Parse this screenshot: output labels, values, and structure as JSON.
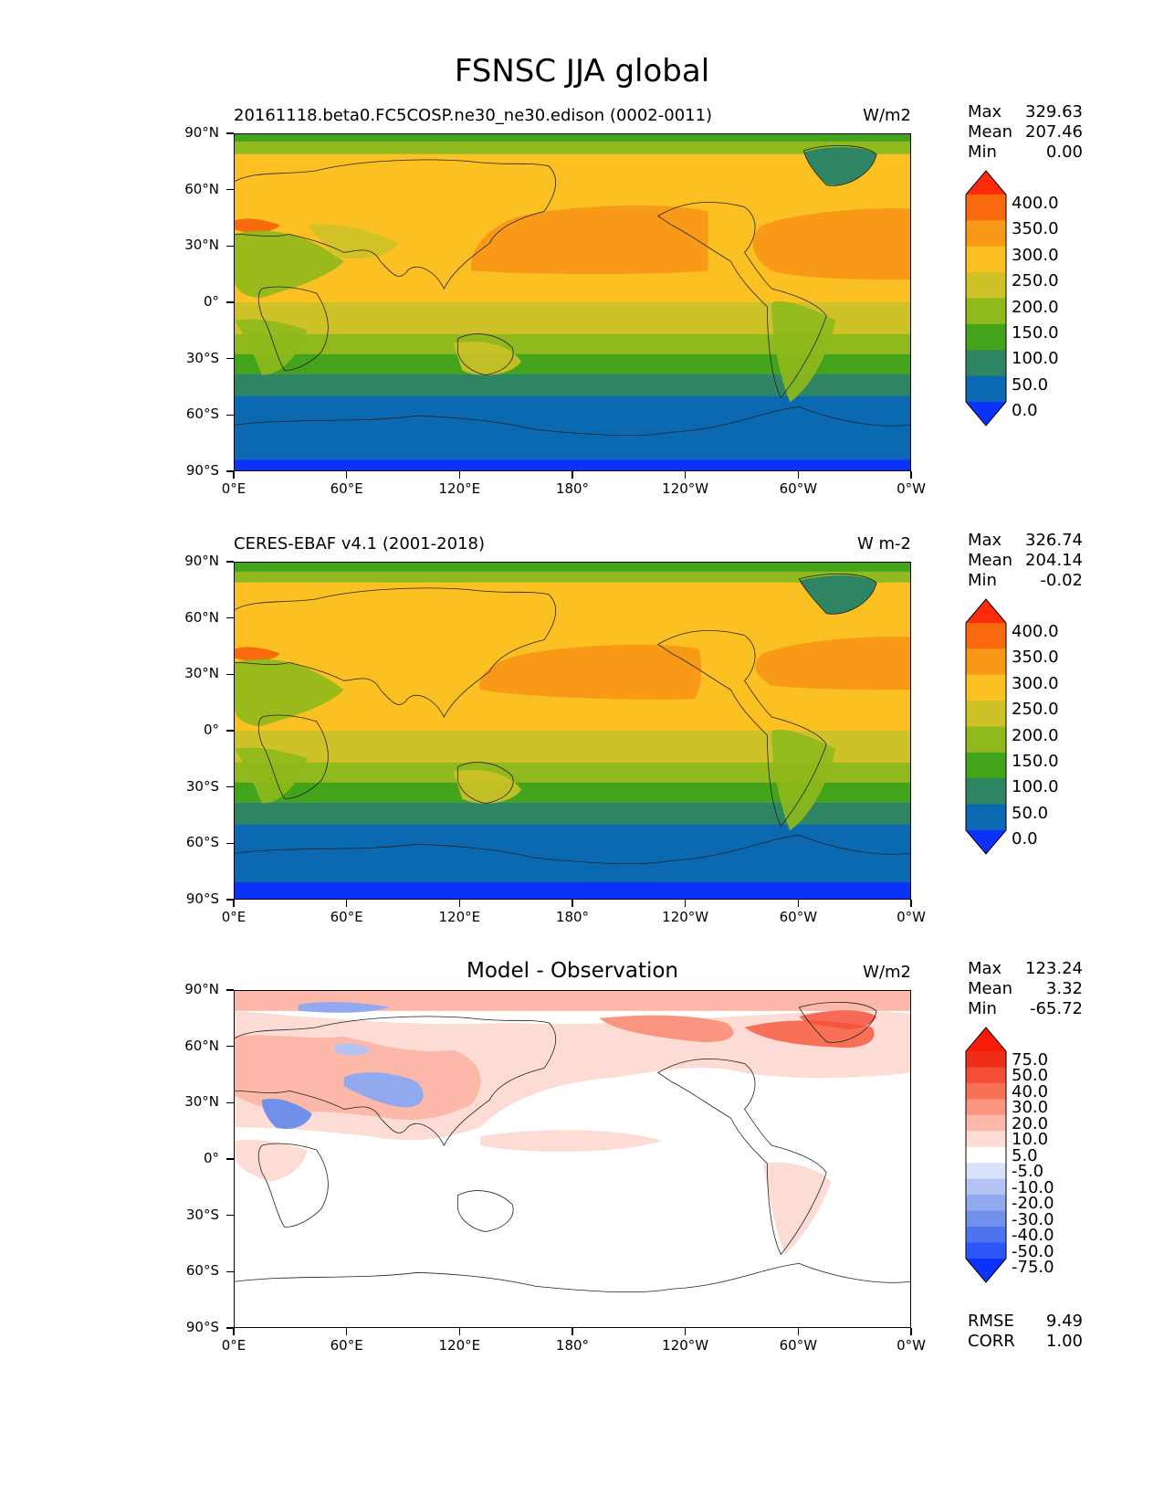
{
  "figure_title": "FSNSC JJA global",
  "lat_labels": [
    "90°N",
    "60°N",
    "30°N",
    "0°",
    "30°S",
    "60°S",
    "90°S"
  ],
  "lon_labels": [
    "0°E",
    "60°E",
    "120°E",
    "180°",
    "120°W",
    "60°W",
    "0°W"
  ],
  "panels": [
    {
      "title": "20161118.beta0.FC5COSP.ne30_ne30.edison (0002-0011)",
      "units": "W/m2",
      "stats": {
        "max_label": "Max",
        "max": "329.63",
        "mean_label": "Mean",
        "mean": "207.46",
        "min_label": "Min",
        "min": "0.00"
      }
    },
    {
      "title": "CERES-EBAF v4.1 (2001-2018)",
      "units": "W m-2",
      "stats": {
        "max_label": "Max",
        "max": "326.74",
        "mean_label": "Mean",
        "mean": "204.14",
        "min_label": "Min",
        "min": "-0.02"
      }
    },
    {
      "title": "Model - Observation",
      "units": "W/m2",
      "stats": {
        "max_label": "Max",
        "max": "123.24",
        "mean_label": "Mean",
        "mean": "3.32",
        "min_label": "Min",
        "min": "-65.72"
      },
      "rmse_label": "RMSE",
      "rmse": "9.49",
      "corr_label": "CORR",
      "corr": "1.00"
    }
  ],
  "chart_data": [
    {
      "type": "heatmap",
      "variable": "FSNSC",
      "season": "JJA",
      "xlim": [
        0,
        360
      ],
      "ylim": [
        -90,
        90
      ],
      "colorbar": {
        "levels": [
          "0.0",
          "50.0",
          "100.0",
          "150.0",
          "200.0",
          "250.0",
          "300.0",
          "350.0",
          "400.0"
        ],
        "colors": [
          "#0a32fa",
          "#0a69b0",
          "#2e8563",
          "#43a31a",
          "#8fb91c",
          "#cec228",
          "#fbc021",
          "#f89a17",
          "#f9690d",
          "#fe2a0c"
        ]
      },
      "zonal_bands": [
        {
          "lat_from": 90,
          "lat_to": 86,
          "level": 150
        },
        {
          "lat_from": 86,
          "lat_to": 80,
          "level": 200
        },
        {
          "lat_from": 80,
          "lat_to": 70,
          "level": 250
        },
        {
          "lat_from": 70,
          "lat_to": -5,
          "level": 250
        },
        {
          "lat_from": -5,
          "lat_to": -18,
          "level": 200
        },
        {
          "lat_from": -18,
          "lat_to": -28,
          "level": 150
        },
        {
          "lat_from": -28,
          "lat_to": -40,
          "level": 100
        },
        {
          "lat_from": -40,
          "lat_to": -48,
          "level": 50
        },
        {
          "lat_from": -48,
          "lat_to": -55,
          "level": 0
        },
        {
          "lat_from": -55,
          "lat_to": -90,
          "level": -1
        }
      ]
    },
    {
      "type": "heatmap",
      "variable": "FSNSC",
      "season": "JJA",
      "xlim": [
        0,
        360
      ],
      "ylim": [
        -90,
        90
      ],
      "colorbar": {
        "levels": [
          "0.0",
          "50.0",
          "100.0",
          "150.0",
          "200.0",
          "250.0",
          "300.0",
          "350.0",
          "400.0"
        ],
        "colors": [
          "#0a32fa",
          "#0a69b0",
          "#2e8563",
          "#43a31a",
          "#8fb91c",
          "#cec228",
          "#fbc021",
          "#f89a17",
          "#f9690d",
          "#fe2a0c"
        ]
      }
    },
    {
      "type": "heatmap",
      "variable": "FSNSC difference",
      "season": "JJA",
      "xlim": [
        0,
        360
      ],
      "ylim": [
        -90,
        90
      ],
      "colorbar": {
        "levels": [
          "-75.0",
          "-50.0",
          "-40.0",
          "-30.0",
          "-20.0",
          "-10.0",
          "-5.0",
          "5.0",
          "10.0",
          "20.0",
          "30.0",
          "40.0",
          "50.0",
          "75.0"
        ],
        "colors": [
          "#0a32fa",
          "#2c56f7",
          "#4f73ee",
          "#7190ea",
          "#93a9ef",
          "#b5c3f2",
          "#d7e1fa",
          "#ffffff",
          "#fddcd5",
          "#fcb9aa",
          "#fa967f",
          "#f87157",
          "#f54e37",
          "#ef2e1a",
          "#f91b08"
        ]
      }
    }
  ]
}
